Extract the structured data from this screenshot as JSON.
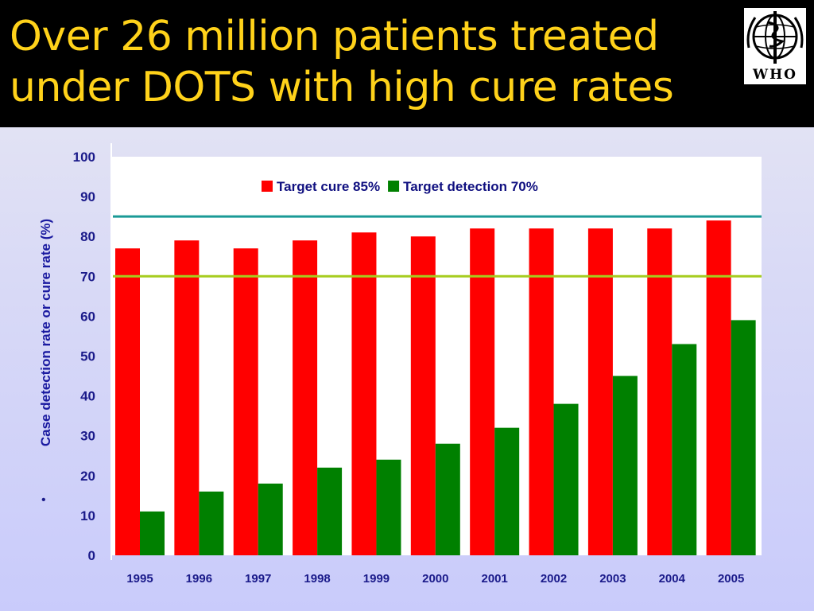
{
  "slide": {
    "title_line1": "Over 26 million patients treated",
    "title_line2": "under DOTS with high cure rates",
    "logo_text": "WHO"
  },
  "colors": {
    "title": "#ffd21a",
    "cure": "#ff0000",
    "detection": "#008000",
    "target_cure_line": "#1a9a96",
    "target_detection_line": "#a6cc1e",
    "axis_text": "#1a1a8a"
  },
  "chart_data": {
    "type": "bar",
    "ylabel": "Case detection rate or cure rate (%)",
    "ylim": [
      0,
      100
    ],
    "yticks": [
      0,
      10,
      20,
      30,
      40,
      50,
      60,
      70,
      80,
      90,
      100
    ],
    "categories": [
      "1995",
      "1996",
      "1997",
      "1998",
      "1999",
      "2000",
      "2001",
      "2002",
      "2003",
      "2004",
      "2005"
    ],
    "series": [
      {
        "name": "Cure rate",
        "color": "#ff0000",
        "values": [
          77,
          79,
          77,
          79,
          81,
          80,
          82,
          82,
          82,
          82,
          84
        ]
      },
      {
        "name": "Case detection rate",
        "color": "#008000",
        "values": [
          11,
          16,
          18,
          22,
          24,
          28,
          32,
          38,
          45,
          53,
          59
        ]
      }
    ],
    "legend": [
      {
        "label": "Target cure 85%",
        "color": "#ff0000"
      },
      {
        "label": "Target detection 70%",
        "color": "#008000"
      }
    ],
    "reference_lines": [
      {
        "value": 85,
        "color": "#1a9a96"
      },
      {
        "value": 70,
        "color": "#a6cc1e"
      }
    ],
    "legend_position": "top-center",
    "grid": false
  }
}
